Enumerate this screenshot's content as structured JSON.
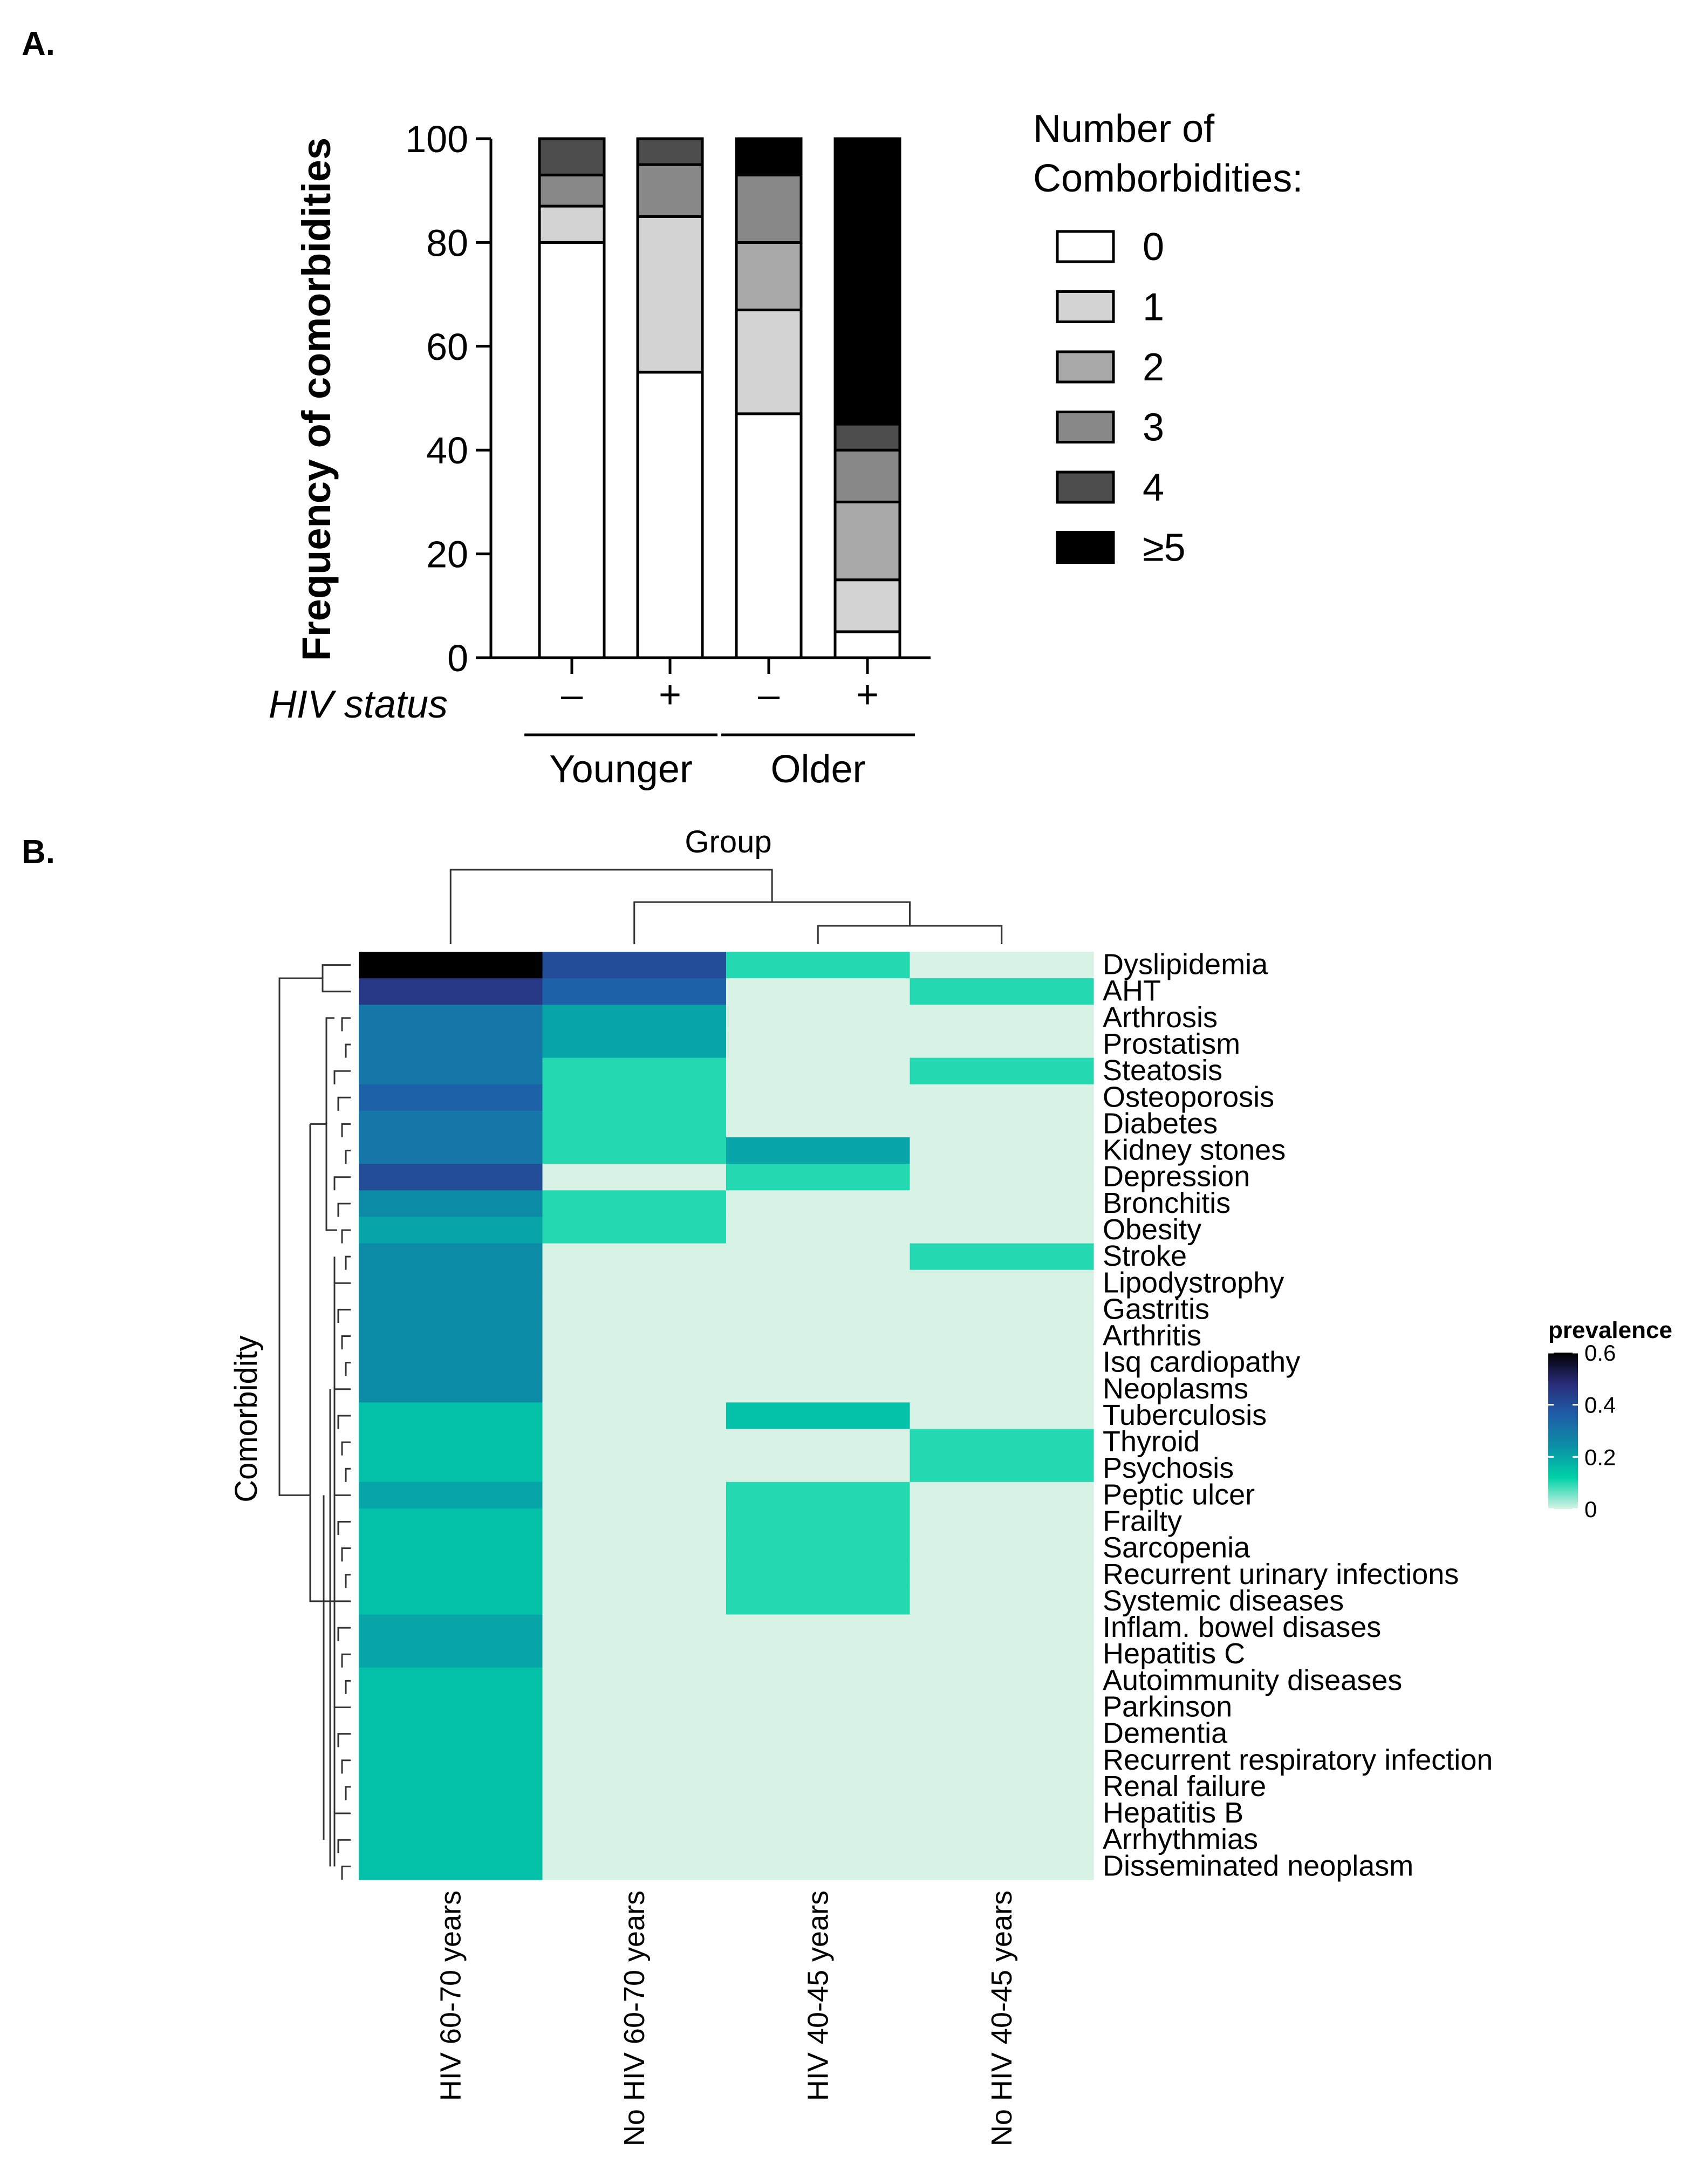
{
  "panels": {
    "a_label": "A.",
    "b_label": "B."
  },
  "chart_data": [
    {
      "type": "bar",
      "stacked": true,
      "ylabel": "Frequency of comorbidities",
      "ylim": [
        0,
        100
      ],
      "yticks": [
        "0",
        "20",
        "40",
        "60",
        "80",
        "100"
      ],
      "categories": [
        "–",
        "+",
        "–",
        "+"
      ],
      "category_row_label": "HIV status",
      "groups": [
        {
          "label": "Younger",
          "categories": [
            0,
            1
          ]
        },
        {
          "label": "Older",
          "categories": [
            2,
            3
          ]
        }
      ],
      "legend_title_line1": "Number of",
      "legend_title_line2": "Comborbidities:",
      "legend_placement": "right",
      "series": [
        {
          "name": "0",
          "color": "#ffffff",
          "values": [
            80,
            55,
            47,
            5
          ]
        },
        {
          "name": "1",
          "color": "#d3d3d3",
          "values": [
            7,
            30,
            20,
            10
          ]
        },
        {
          "name": "2",
          "color": "#a9a9a9",
          "values": [
            0,
            0,
            13,
            15
          ]
        },
        {
          "name": "3",
          "color": "#888888",
          "values": [
            6,
            10,
            13,
            10
          ]
        },
        {
          "name": "4",
          "color": "#4d4d4d",
          "values": [
            7,
            5,
            0,
            5
          ]
        },
        {
          "name": "≥5",
          "color": "#000000",
          "values": [
            0,
            0,
            7,
            55
          ]
        }
      ]
    },
    {
      "type": "heatmap",
      "title": "Group",
      "ylabel": "Comorbidity",
      "columns": [
        "HIV 60-70 years",
        "No HIV 60-70 years",
        "HIV 40-45 years",
        "No HIV 40-45 years"
      ],
      "rows": [
        "Dyslipidemia",
        "AHT",
        "Arthrosis",
        "Prostatism",
        "Steatosis",
        "Osteoporosis",
        "Diabetes",
        "Kidney stones",
        "Depression",
        "Bronchitis",
        "Obesity",
        "Stroke",
        "Lipodystrophy",
        "Gastritis",
        "Arthritis",
        "Isq cardiopathy",
        "Neoplasms",
        "Tuberculosis",
        "Thyroid",
        "Psychosis",
        "Peptic ulcer",
        "Frailty",
        "Sarcopenia",
        "Recurrent urinary infections",
        "Systemic diseases",
        "Inflam. bowel disases",
        "Hepatitis C",
        "Autoimmunity diseases",
        "Parkinson",
        "Dementia",
        "Recurrent respiratory infection",
        "Renal failure",
        "Hepatitis B",
        "Arrhythmias",
        "Disseminated neoplasm"
      ],
      "values": [
        [
          0.6,
          0.4,
          0.1,
          0.0
        ],
        [
          0.45,
          0.35,
          0.0,
          0.1
        ],
        [
          0.3,
          0.2,
          0.0,
          0.0
        ],
        [
          0.3,
          0.2,
          0.0,
          0.0
        ],
        [
          0.3,
          0.1,
          0.0,
          0.1
        ],
        [
          0.35,
          0.1,
          0.0,
          0.0
        ],
        [
          0.3,
          0.1,
          0.0,
          0.0
        ],
        [
          0.3,
          0.1,
          0.2,
          0.0
        ],
        [
          0.4,
          0.0,
          0.1,
          0.0
        ],
        [
          0.25,
          0.1,
          0.0,
          0.0
        ],
        [
          0.2,
          0.1,
          0.0,
          0.0
        ],
        [
          0.25,
          0.0,
          0.0,
          0.1
        ],
        [
          0.25,
          0.0,
          0.0,
          0.0
        ],
        [
          0.25,
          0.0,
          0.0,
          0.0
        ],
        [
          0.25,
          0.0,
          0.0,
          0.0
        ],
        [
          0.25,
          0.0,
          0.0,
          0.0
        ],
        [
          0.25,
          0.0,
          0.0,
          0.0
        ],
        [
          0.15,
          0.0,
          0.15,
          0.0
        ],
        [
          0.15,
          0.0,
          0.0,
          0.1
        ],
        [
          0.15,
          0.0,
          0.0,
          0.1
        ],
        [
          0.2,
          0.0,
          0.1,
          0.0
        ],
        [
          0.15,
          0.0,
          0.1,
          0.0
        ],
        [
          0.15,
          0.0,
          0.1,
          0.0
        ],
        [
          0.15,
          0.0,
          0.1,
          0.0
        ],
        [
          0.15,
          0.0,
          0.1,
          0.0
        ],
        [
          0.2,
          0.0,
          0.0,
          0.0
        ],
        [
          0.2,
          0.0,
          0.0,
          0.0
        ],
        [
          0.15,
          0.0,
          0.0,
          0.0
        ],
        [
          0.15,
          0.0,
          0.0,
          0.0
        ],
        [
          0.15,
          0.0,
          0.0,
          0.0
        ],
        [
          0.15,
          0.0,
          0.0,
          0.0
        ],
        [
          0.15,
          0.0,
          0.0,
          0.0
        ],
        [
          0.15,
          0.0,
          0.0,
          0.0
        ],
        [
          0.15,
          0.0,
          0.0,
          0.0
        ],
        [
          0.15,
          0.0,
          0.0,
          0.0
        ]
      ],
      "colorbar_title": "prevalence",
      "colorbar_range": [
        0,
        0.6
      ],
      "colorbar_ticks": [
        "0",
        "0.2",
        "0.4",
        "0.6"
      ],
      "color_stops": [
        "#d8f3e5",
        "#00d2a8",
        "#0a8fa6",
        "#1f5ea8",
        "#2a2c7a",
        "#000000"
      ]
    }
  ]
}
